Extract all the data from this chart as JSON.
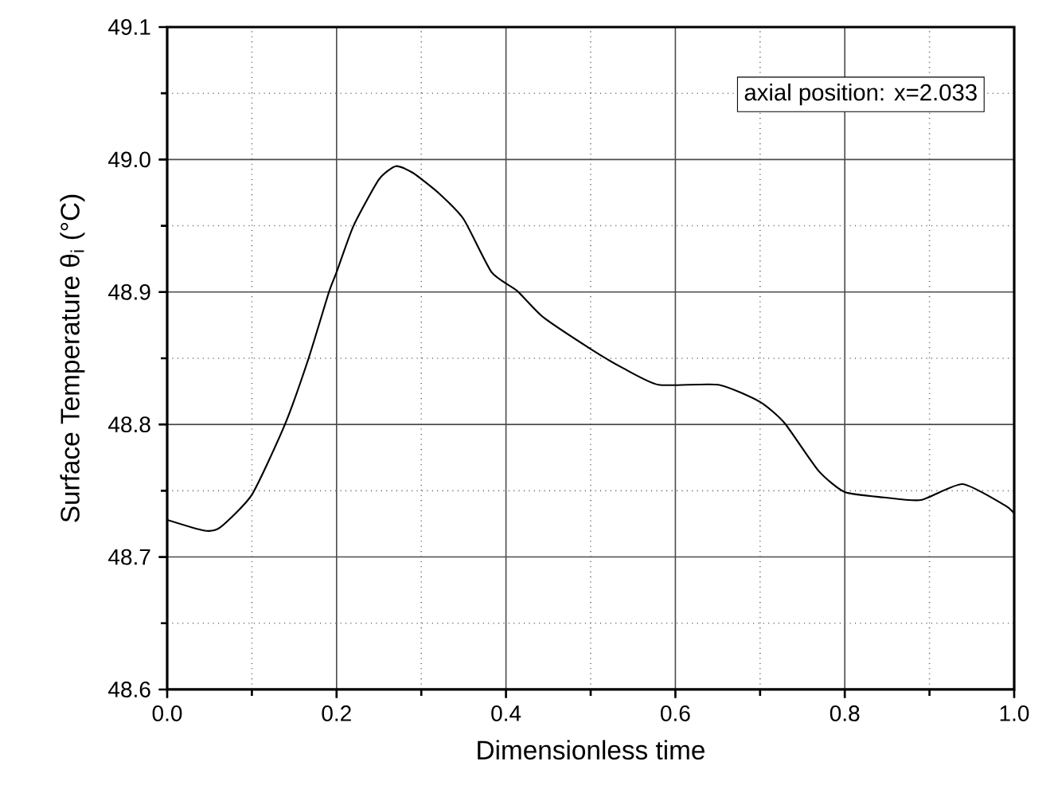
{
  "chart_data": {
    "type": "line",
    "xlabel": "Dimensionless time",
    "ylabel": "Surface Temperature θ$_{i}$ (°C)",
    "annotations": [
      "axial position: x=2.033"
    ],
    "series": [
      {
        "color": "#000000",
        "line_style": "solid",
        "x": [
          0,
          0.043,
          0.062,
          0.1,
          0.139,
          0.167,
          0.191,
          0.2,
          0.22,
          0.25,
          0.27,
          0.29,
          0.32,
          0.35,
          0.383,
          0.413,
          0.444,
          0.5,
          0.537,
          0.58,
          0.651,
          0.7,
          0.729,
          0.769,
          0.8,
          0.846,
          0.89,
          0.939,
          0.989,
          1.0
        ],
        "values": [
          48.728,
          48.72,
          48.722,
          48.747,
          48.8,
          48.85,
          48.9,
          48.915,
          48.95,
          48.985,
          48.995,
          48.99,
          48.975,
          48.955,
          48.915,
          48.901,
          48.881,
          48.857,
          48.843,
          48.83,
          48.83,
          48.817,
          48.801,
          48.765,
          48.749,
          48.745,
          48.743,
          48.755,
          48.739,
          48.733
        ]
      }
    ],
    "xlim": [
      0,
      1
    ],
    "ylim": [
      48.6,
      49.1
    ],
    "xticks": [
      {
        "value": 0,
        "label": "0.0"
      },
      {
        "value": 0.1,
        "label": null
      },
      0.2,
      {
        "value": 0.3,
        "label": null
      },
      0.4,
      {
        "value": 0.5,
        "label": null
      },
      0.6,
      {
        "value": 0.7,
        "label": null
      },
      0.8,
      {
        "value": 0.9,
        "label": null
      },
      {
        "value": 1,
        "label": "1.0"
      }
    ],
    "yticks": [
      48.6,
      {
        "value": 48.65,
        "label": null
      },
      48.7,
      {
        "value": 48.75,
        "label": null
      },
      48.8,
      {
        "value": 48.85,
        "label": null
      },
      48.9,
      {
        "value": 48.95,
        "label": null
      },
      {
        "value": 49.0,
        "label": "49.0"
      },
      {
        "value": 49.05,
        "label": null
      },
      49.1
    ],
    "grid": true
  }
}
